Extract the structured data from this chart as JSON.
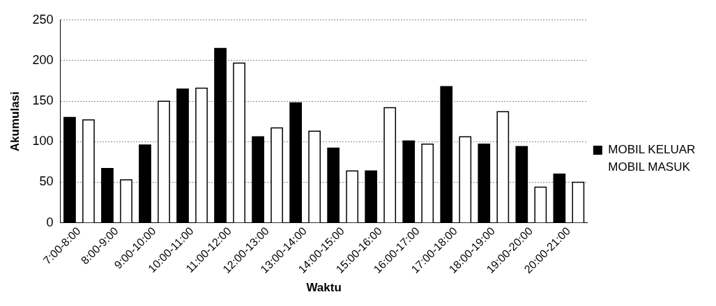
{
  "chart_data": {
    "type": "bar",
    "xlabel": "Waktu",
    "ylabel": "Akumulasi",
    "categories": [
      "7:00-8:00",
      "8:00-9:00",
      "9:00-10:00",
      "10:00-11:00",
      "11:00-12:00",
      "12:00-13:00",
      "13:00-14:00",
      "14:00-15:00",
      "15:00-16:00",
      "16:00-17:00",
      "17:00-18:00",
      "18:00-19:00",
      "19:00-20:00",
      "20:00-21:00"
    ],
    "series": [
      {
        "name": "MOBIL KELUAR",
        "color": "#000000",
        "values": [
          130,
          67,
          96,
          165,
          215,
          106,
          148,
          92,
          64,
          101,
          168,
          97,
          94,
          60
        ]
      },
      {
        "name": "MOBIL MASUK",
        "color": "#ffffff",
        "values": [
          127,
          53,
          150,
          166,
          197,
          117,
          113,
          64,
          142,
          97,
          106,
          137,
          44,
          50
        ]
      }
    ],
    "ylim": [
      0,
      250
    ],
    "yticks": [
      0,
      50,
      100,
      150,
      200,
      250
    ],
    "grid": "y",
    "legend": "right"
  }
}
